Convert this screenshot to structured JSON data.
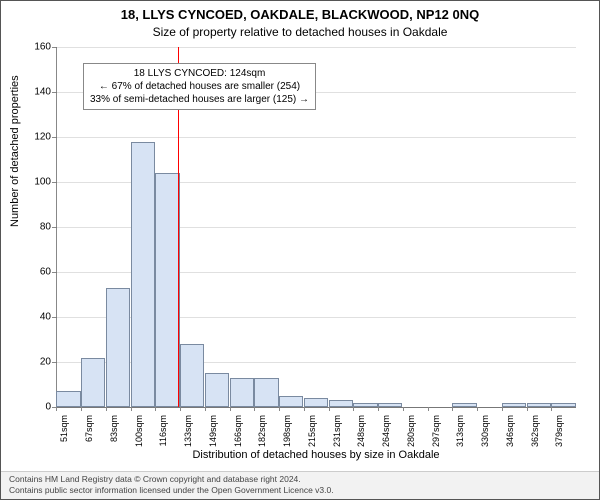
{
  "title_main": "18, LLYS CYNCOED, OAKDALE, BLACKWOOD, NP12 0NQ",
  "title_sub": "Size of property relative to detached houses in Oakdale",
  "y_axis_label": "Number of detached properties",
  "x_axis_label": "Distribution of detached houses by size in Oakdale",
  "chart": {
    "type": "histogram",
    "y_max": 160,
    "y_ticks": [
      0,
      20,
      40,
      60,
      80,
      100,
      120,
      140,
      160
    ],
    "x_tick_labels": [
      "51sqm",
      "67sqm",
      "83sqm",
      "100sqm",
      "116sqm",
      "133sqm",
      "149sqm",
      "166sqm",
      "182sqm",
      "198sqm",
      "215sqm",
      "231sqm",
      "248sqm",
      "264sqm",
      "280sqm",
      "297sqm",
      "313sqm",
      "330sqm",
      "346sqm",
      "362sqm",
      "379sqm"
    ],
    "bars": [
      7,
      22,
      53,
      118,
      104,
      28,
      15,
      13,
      13,
      5,
      4,
      3,
      2,
      2,
      0,
      0,
      2,
      0,
      2,
      2,
      2
    ],
    "bar_color": "#d7e3f4",
    "bar_border": "#7a8aa0",
    "grid_color": "#000000",
    "background_color": "#ffffff",
    "marker_value_sqm": 124,
    "x_min": 43,
    "x_max": 387,
    "vline_color": "#ff0000"
  },
  "callout": {
    "line1": "18 LLYS CYNCOED: 124sqm",
    "line2": "← 67% of detached houses are smaller (254)",
    "line3": "33% of semi-detached houses are larger (125) →"
  },
  "footer": {
    "line1": "Contains HM Land Registry data © Crown copyright and database right 2024.",
    "line2": "Contains public sector information licensed under the Open Government Licence v3.0."
  }
}
